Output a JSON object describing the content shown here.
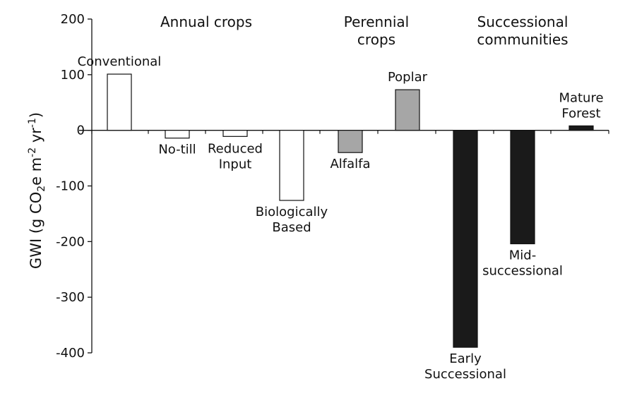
{
  "chart_data": {
    "type": "bar",
    "ylabel_parts": {
      "before": "GWI (g CO",
      "sub": "2",
      "mid1": "e m",
      "sup1": "-2",
      "mid2": " yr",
      "sup2": "-1",
      "after": ")"
    },
    "ylim": [
      -400,
      200
    ],
    "yticks": [
      "200",
      "100",
      "0",
      "-100",
      "-200",
      "-300",
      "-400"
    ],
    "ytick_values": [
      200,
      100,
      0,
      -100,
      -200,
      -300,
      -400
    ],
    "groups": [
      {
        "label_lines": [
          "Annual crops"
        ]
      },
      {
        "label_lines": [
          "Perennial",
          "crops"
        ]
      },
      {
        "label_lines": [
          "Successional",
          "communities"
        ]
      }
    ],
    "bars": [
      {
        "label_lines": [
          "Conventional"
        ],
        "value": 101,
        "group": 0,
        "color": "#ffffff"
      },
      {
        "label_lines": [
          "No-till"
        ],
        "value": -14,
        "group": 0,
        "color": "#ffffff"
      },
      {
        "label_lines": [
          "Reduced",
          "Input"
        ],
        "value": -11,
        "group": 0,
        "color": "#ffffff"
      },
      {
        "label_lines": [
          "Biologically",
          "Based"
        ],
        "value": -126,
        "group": 0,
        "color": "#ffffff"
      },
      {
        "label_lines": [
          "Alfalfa"
        ],
        "value": -40,
        "group": 1,
        "color": "#a6a6a6"
      },
      {
        "label_lines": [
          "Poplar"
        ],
        "value": 73,
        "group": 1,
        "color": "#a6a6a6"
      },
      {
        "label_lines": [
          "Early",
          "Successional"
        ],
        "value": -390,
        "group": 2,
        "color": "#1a1a1a"
      },
      {
        "label_lines": [
          "Mid-",
          "successional"
        ],
        "value": -204,
        "group": 2,
        "color": "#1a1a1a"
      },
      {
        "label_lines": [
          "Mature",
          "Forest"
        ],
        "value": 8,
        "group": 2,
        "color": "#1a1a1a"
      }
    ]
  }
}
